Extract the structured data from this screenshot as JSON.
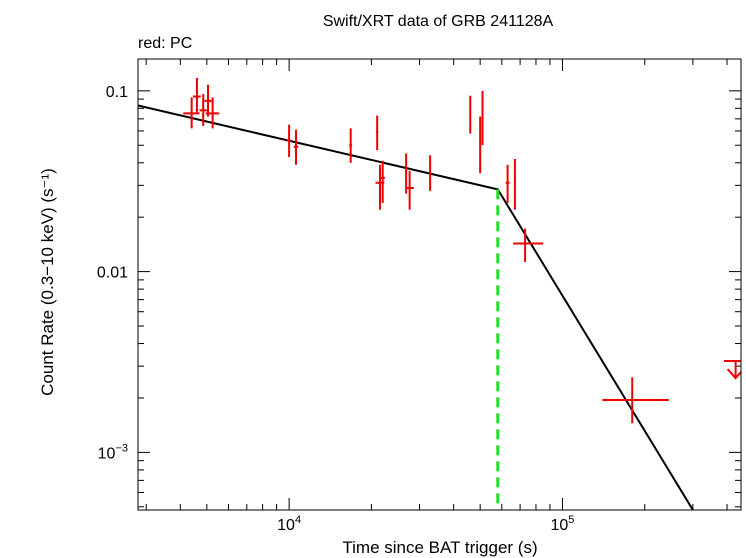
{
  "chart_data": {
    "type": "scatter",
    "title": "Swift/XRT data of GRB 241128A",
    "subtitle": "red: PC",
    "xlabel": "Time since BAT trigger (s)",
    "ylabel": "Count Rate (0.3−10 keV) (s⁻¹)",
    "xscale": "log",
    "yscale": "log",
    "xlim": [
      2800,
      450000
    ],
    "ylim": [
      0.00048,
      0.15
    ],
    "x_ticks": [
      {
        "value": 10000,
        "base": "10",
        "exp": "4"
      },
      {
        "value": 100000,
        "base": "10",
        "exp": "5"
      }
    ],
    "y_ticks": [
      {
        "value": 0.1,
        "label": "0.1"
      },
      {
        "value": 0.01,
        "label": "0.01"
      },
      {
        "value": 0.001,
        "base": "10",
        "exp": "−3"
      }
    ],
    "grid": false,
    "colors": {
      "data": "#ee0000",
      "model": "#000000",
      "break": "#22dd22"
    },
    "series": [
      {
        "points": [
          {
            "x": 4400,
            "xlo": 4100,
            "xhi": 4700,
            "y": 0.075,
            "ylo": 0.062,
            "yhi": 0.092
          },
          {
            "x": 4600,
            "xlo": 4450,
            "xhi": 4750,
            "y": 0.093,
            "ylo": 0.076,
            "yhi": 0.118
          },
          {
            "x": 4850,
            "xlo": 4700,
            "xhi": 5000,
            "y": 0.078,
            "ylo": 0.064,
            "yhi": 0.096
          },
          {
            "x": 5050,
            "xlo": 4900,
            "xhi": 5200,
            "y": 0.088,
            "ylo": 0.072,
            "yhi": 0.108
          },
          {
            "x": 5250,
            "xlo": 4950,
            "xhi": 5550,
            "y": 0.075,
            "ylo": 0.062,
            "yhi": 0.092
          },
          {
            "x": 10000,
            "xlo": 9800,
            "xhi": 10200,
            "y": 0.053,
            "ylo": 0.043,
            "yhi": 0.065
          },
          {
            "x": 10600,
            "xlo": 10400,
            "xhi": 10800,
            "y": 0.049,
            "ylo": 0.039,
            "yhi": 0.061
          },
          {
            "x": 16800,
            "xlo": 16600,
            "xhi": 17000,
            "y": 0.05,
            "ylo": 0.04,
            "yhi": 0.062
          },
          {
            "x": 21000,
            "xlo": 20800,
            "xhi": 21200,
            "y": 0.059,
            "ylo": 0.047,
            "yhi": 0.073
          },
          {
            "x": 21500,
            "xlo": 20700,
            "xhi": 22300,
            "y": 0.031,
            "ylo": 0.022,
            "yhi": 0.039
          },
          {
            "x": 22000,
            "xlo": 21600,
            "xhi": 22400,
            "y": 0.033,
            "ylo": 0.024,
            "yhi": 0.041
          },
          {
            "x": 26800,
            "xlo": 26600,
            "xhi": 27000,
            "y": 0.036,
            "ylo": 0.027,
            "yhi": 0.045
          },
          {
            "x": 27600,
            "xlo": 26600,
            "xhi": 28600,
            "y": 0.029,
            "ylo": 0.022,
            "yhi": 0.036
          },
          {
            "x": 32800,
            "xlo": 32600,
            "xhi": 33000,
            "y": 0.036,
            "ylo": 0.028,
            "yhi": 0.044
          },
          {
            "x": 46000,
            "xlo": 45700,
            "xhi": 46300,
            "y": 0.075,
            "ylo": 0.058,
            "yhi": 0.094
          },
          {
            "x": 50000,
            "xlo": 49700,
            "xhi": 50300,
            "y": 0.055,
            "ylo": 0.035,
            "yhi": 0.072
          },
          {
            "x": 51000,
            "xlo": 50700,
            "xhi": 51300,
            "y": 0.075,
            "ylo": 0.05,
            "yhi": 0.1
          },
          {
            "x": 63000,
            "xlo": 62000,
            "xhi": 64000,
            "y": 0.031,
            "ylo": 0.024,
            "yhi": 0.039
          },
          {
            "x": 67000,
            "xlo": 66500,
            "xhi": 67500,
            "y": 0.032,
            "ylo": 0.022,
            "yhi": 0.042
          },
          {
            "x": 73000,
            "xlo": 66000,
            "xhi": 85000,
            "y": 0.0143,
            "ylo": 0.0113,
            "yhi": 0.0173
          },
          {
            "x": 180000,
            "xlo": 140000,
            "xhi": 245000,
            "y": 0.00195,
            "ylo": 0.00145,
            "yhi": 0.0026
          }
        ]
      }
    ],
    "upper_limits": [
      {
        "x": 430000,
        "xlo": 390000,
        "xhi": 465000,
        "y": 0.0032
      }
    ],
    "model": [
      {
        "x": 2800,
        "y": 0.083
      },
      {
        "x": 58000,
        "y": 0.0285
      },
      {
        "x": 300000,
        "y": 0.00048
      }
    ],
    "break_time": 58000
  }
}
